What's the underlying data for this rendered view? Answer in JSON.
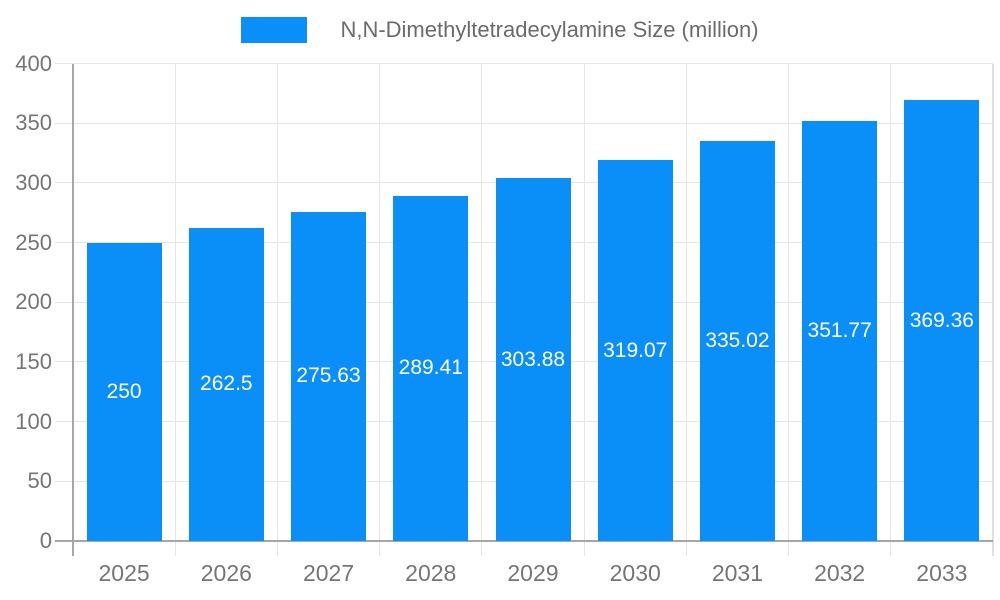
{
  "legend": {
    "label": "N,N-Dimethyltetradecylamine Size (million)"
  },
  "chart_data": {
    "type": "bar",
    "title": "N,N-Dimethyltetradecylamine Size (million)",
    "categories": [
      "2025",
      "2026",
      "2027",
      "2028",
      "2029",
      "2030",
      "2031",
      "2032",
      "2033"
    ],
    "values": [
      250,
      262.5,
      275.63,
      289.41,
      303.88,
      319.07,
      335.02,
      351.77,
      369.36
    ],
    "value_labels": [
      "250",
      "262.5",
      "275.63",
      "289.41",
      "303.88",
      "319.07",
      "335.02",
      "351.77",
      "369.36"
    ],
    "xlabel": "",
    "ylabel": "",
    "ylim": [
      0,
      400
    ],
    "ytick_step": 50,
    "yticks": [
      0,
      50,
      100,
      150,
      200,
      250,
      300,
      350,
      400
    ],
    "grid": true,
    "legend_position": "top-center",
    "colors": {
      "bar": "#0a8ff9",
      "grid_line": "#e6e6e6",
      "right_border": "#e0e0e0",
      "axis_line": "#a6a6a6",
      "tick_label": "#757575",
      "legend_text": "#6b6b6b",
      "value_label": "#ffffff",
      "background": "#ffffff"
    }
  }
}
